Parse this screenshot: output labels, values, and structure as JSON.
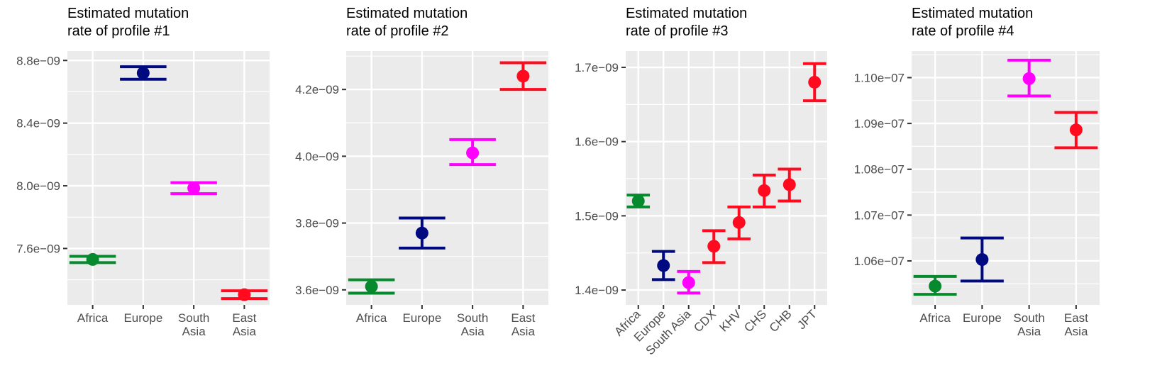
{
  "colors": {
    "panel_bg": "#ebebeb",
    "grid": "#ffffff",
    "axis_text": "#4d4d4d",
    "tick": "#333333",
    "africa": "#078a2e",
    "europe": "#000a80",
    "south_asia": "#ff00ff",
    "east_asia": "#ff0a1e"
  },
  "chart_data": [
    {
      "type": "scatter",
      "title_line1": "Estimated mutation",
      "title_line2": "rate of profile #1",
      "categories": [
        "Africa",
        "Europe",
        "South Asia",
        "East Asia"
      ],
      "category_lines": [
        [
          "Africa"
        ],
        [
          "Europe"
        ],
        [
          "South",
          "Asia"
        ],
        [
          "East",
          "Asia"
        ]
      ],
      "values": [
        7.53e-09,
        8.72e-09,
        7.985e-09,
        7.305e-09
      ],
      "lower": [
        7.51e-09,
        8.68e-09,
        7.95e-09,
        7.28e-09
      ],
      "upper": [
        7.55e-09,
        8.76e-09,
        8.02e-09,
        7.33e-09
      ],
      "colors": [
        "#078a2e",
        "#000a80",
        "#ff00ff",
        "#ff0a1e"
      ],
      "yticks": [
        7.6e-09,
        8e-09,
        8.4e-09,
        8.8e-09
      ],
      "ytick_labels": [
        "7.6e−09",
        "8.0e−09",
        "8.4e−09",
        "8.8e−09"
      ],
      "ylim": [
        7.24e-09,
        8.86e-09
      ],
      "grid": true
    },
    {
      "type": "scatter",
      "title_line1": "Estimated mutation",
      "title_line2": "rate of profile #2",
      "categories": [
        "Africa",
        "Europe",
        "South Asia",
        "East Asia"
      ],
      "category_lines": [
        [
          "Africa"
        ],
        [
          "Europe"
        ],
        [
          "South",
          "Asia"
        ],
        [
          "East",
          "Asia"
        ]
      ],
      "values": [
        3.61e-09,
        3.77e-09,
        4.01e-09,
        4.24e-09
      ],
      "lower": [
        3.59e-09,
        3.725e-09,
        3.975e-09,
        4.2e-09
      ],
      "upper": [
        3.63e-09,
        3.815e-09,
        4.05e-09,
        4.28e-09
      ],
      "colors": [
        "#078a2e",
        "#000a80",
        "#ff00ff",
        "#ff0a1e"
      ],
      "yticks": [
        3.6e-09,
        3.8e-09,
        4e-09,
        4.2e-09
      ],
      "ytick_labels": [
        "3.6e−09",
        "3.8e−09",
        "4.0e−09",
        "4.2e−09"
      ],
      "ylim": [
        3.555e-09,
        4.315e-09
      ],
      "grid": true
    },
    {
      "type": "scatter",
      "title_line1": "Estimated mutation",
      "title_line2": "rate of profile #3",
      "categories": [
        "Africa",
        "Europe",
        "South Asia",
        "CDX",
        "KHV",
        "CHS",
        "CHB",
        "JPT"
      ],
      "values": [
        1.52e-09,
        1.433e-09,
        1.41e-09,
        1.459e-09,
        1.491e-09,
        1.534e-09,
        1.542e-09,
        1.68e-09
      ],
      "lower": [
        1.512e-09,
        1.414e-09,
        1.396e-09,
        1.437e-09,
        1.469e-09,
        1.512e-09,
        1.52e-09,
        1.655e-09
      ],
      "upper": [
        1.528e-09,
        1.452e-09,
        1.425e-09,
        1.48e-09,
        1.512e-09,
        1.555e-09,
        1.563e-09,
        1.705e-09
      ],
      "colors": [
        "#078a2e",
        "#000a80",
        "#ff00ff",
        "#ff0a1e",
        "#ff0a1e",
        "#ff0a1e",
        "#ff0a1e",
        "#ff0a1e"
      ],
      "yticks": [
        1.4e-09,
        1.5e-09,
        1.6e-09,
        1.7e-09
      ],
      "ytick_labels": [
        "1.4e−09",
        "1.5e−09",
        "1.6e−09",
        "1.7e−09"
      ],
      "ylim": [
        1.38e-09,
        1.722e-09
      ],
      "grid": true
    },
    {
      "type": "scatter",
      "title_line1": "Estimated mutation",
      "title_line2": "rate of profile #4",
      "categories": [
        "Africa",
        "Europe",
        "South Asia",
        "East Asia"
      ],
      "category_lines": [
        [
          "Africa"
        ],
        [
          "Europe"
        ],
        [
          "South",
          "Asia"
        ],
        [
          "East",
          "Asia"
        ]
      ],
      "values": [
        1.0545e-07,
        1.0603e-07,
        1.0998e-07,
        1.0886e-07
      ],
      "lower": [
        1.0527e-07,
        1.0556e-07,
        1.096e-07,
        1.0847e-07
      ],
      "upper": [
        1.0566e-07,
        1.065e-07,
        1.1038e-07,
        1.0924e-07
      ],
      "colors": [
        "#078a2e",
        "#000a80",
        "#ff00ff",
        "#ff0a1e"
      ],
      "yticks": [
        1.06e-07,
        1.07e-07,
        1.08e-07,
        1.09e-07,
        1.1e-07
      ],
      "ytick_labels": [
        "1.06e−07",
        "1.07e−07",
        "1.08e−07",
        "1.09e−07",
        "1.10e−07"
      ],
      "ylim": [
        1.0504e-07,
        1.1058e-07
      ],
      "grid": true
    }
  ]
}
